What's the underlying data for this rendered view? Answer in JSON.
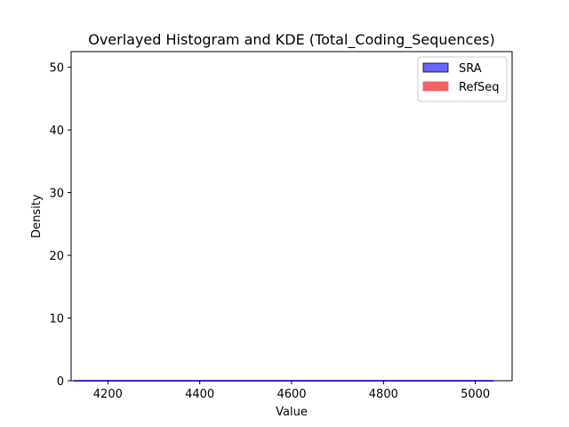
{
  "chart_data": {
    "type": "histogram",
    "title": "Overlayed Histogram and KDE (Total_Coding_Sequences)",
    "xlabel": "Value",
    "ylabel": "Density",
    "xlim": [
      4120,
      5080
    ],
    "ylim": [
      0,
      52.5
    ],
    "xticks": [
      4200,
      4400,
      4600,
      4800,
      5000
    ],
    "yticks": [
      0,
      10,
      20,
      30,
      40,
      50
    ],
    "grid": false,
    "legend_position": "top-right",
    "series": [
      {
        "name": "SRA",
        "kind": "histogram+kde",
        "fill_color": "#6666ff",
        "edge_color": "#000000",
        "line_color": "#0000cc",
        "x_range": [
          4125,
          5040
        ],
        "density": 0.0
      },
      {
        "name": "RefSeq",
        "kind": "histogram+kde",
        "fill_color": "#f06262",
        "edge_color": "#f06262",
        "line_color": "#f06262",
        "x_range": [
          4125,
          5040
        ],
        "density": 0.0
      }
    ]
  }
}
